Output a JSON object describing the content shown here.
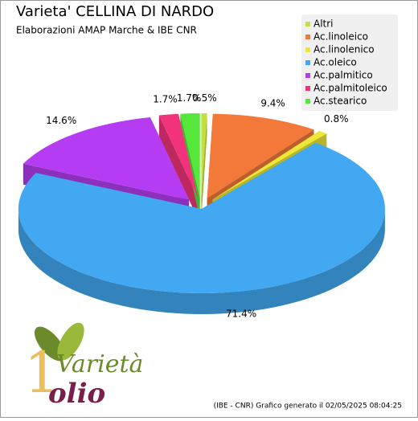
{
  "chart_data": {
    "type": "pie3d",
    "title": "Varieta' CELLINA DI NARDO",
    "subtitle": "Elaborazioni AMAP Marche & IBE CNR",
    "footer": "(IBE - CNR) Grafico generato il 02/05/2025 08:04:25",
    "legend": "top-right",
    "categories": [
      "Altri",
      "Ac.linoleico",
      "Ac.linolenico",
      "Ac.oleico",
      "Ac.palmitico",
      "Ac.palmitoleico",
      "Ac.stearico"
    ],
    "values": [
      0.5,
      9.4,
      0.8,
      71.4,
      14.6,
      1.7,
      1.7
    ],
    "value_labels": [
      "0.5%",
      "9.4%",
      "0.8%",
      "71.4%",
      "14.6%",
      "1.7%",
      "1.7%"
    ],
    "colors": [
      "#c4e03a",
      "#f2793a",
      "#ece83a",
      "#42a8f2",
      "#b53cf2",
      "#f2337c",
      "#55e83a"
    ]
  },
  "logo": {
    "word": "Varietà",
    "brand": "olio"
  }
}
